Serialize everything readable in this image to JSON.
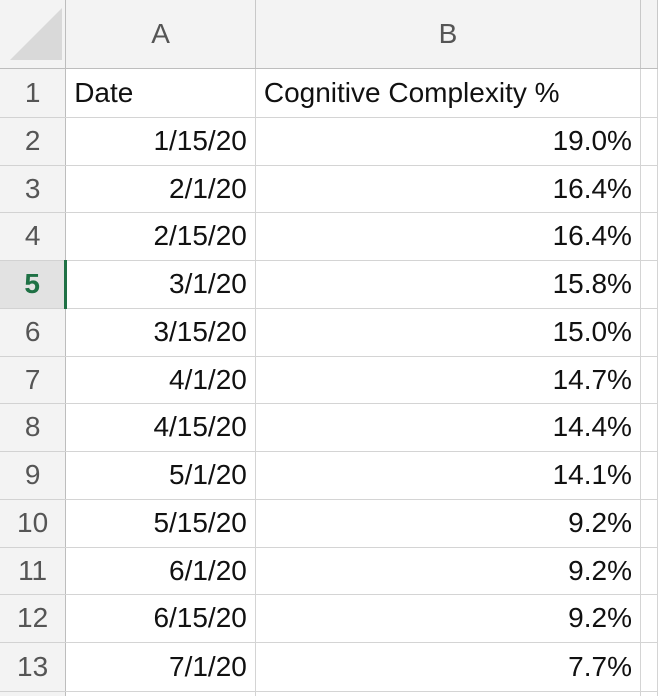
{
  "sheet": {
    "columns": [
      "A",
      "B"
    ],
    "active_row": "5",
    "header_row": {
      "row_number": "1",
      "a": "Date",
      "b": "Cognitive Complexity %"
    },
    "rows": [
      {
        "row_number": "2",
        "date": "1/15/20",
        "value": "19.0%"
      },
      {
        "row_number": "3",
        "date": "2/1/20",
        "value": "16.4%"
      },
      {
        "row_number": "4",
        "date": "2/15/20",
        "value": "16.4%"
      },
      {
        "row_number": "5",
        "date": "3/1/20",
        "value": "15.8%"
      },
      {
        "row_number": "6",
        "date": "3/15/20",
        "value": "15.0%"
      },
      {
        "row_number": "7",
        "date": "4/1/20",
        "value": "14.7%"
      },
      {
        "row_number": "8",
        "date": "4/15/20",
        "value": "14.4%"
      },
      {
        "row_number": "9",
        "date": "5/1/20",
        "value": "14.1%"
      },
      {
        "row_number": "10",
        "date": "5/15/20",
        "value": "9.2%"
      },
      {
        "row_number": "11",
        "date": "6/1/20",
        "value": "9.2%"
      },
      {
        "row_number": "12",
        "date": "6/15/20",
        "value": "9.2%"
      },
      {
        "row_number": "13",
        "date": "7/1/20",
        "value": "7.7%"
      }
    ],
    "accent_color": "#1f7145"
  }
}
